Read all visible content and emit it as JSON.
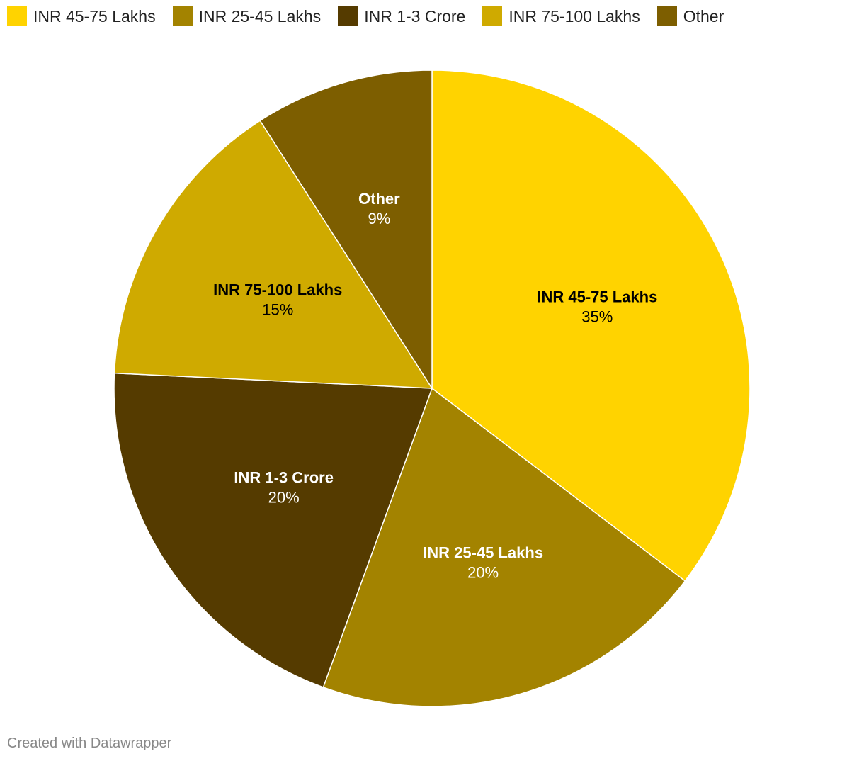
{
  "chart_data": {
    "type": "pie",
    "categories": [
      "INR 45-75 Lakhs",
      "INR 25-45 Lakhs",
      "INR 1-3 Crore",
      "INR 75-100 Lakhs",
      "Other"
    ],
    "values": [
      35,
      20,
      20,
      15,
      9
    ],
    "value_labels": [
      "35%",
      "20%",
      "20%",
      "15%",
      "9%"
    ],
    "colors": [
      "#FFD300",
      "#A38300",
      "#553B00",
      "#CFAA00",
      "#7D5E00"
    ],
    "label_colors": [
      "#000000",
      "#ffffff",
      "#ffffff",
      "#000000",
      "#ffffff"
    ],
    "legend_position": "top-left"
  },
  "footer": {
    "credit": "Created with Datawrapper"
  }
}
